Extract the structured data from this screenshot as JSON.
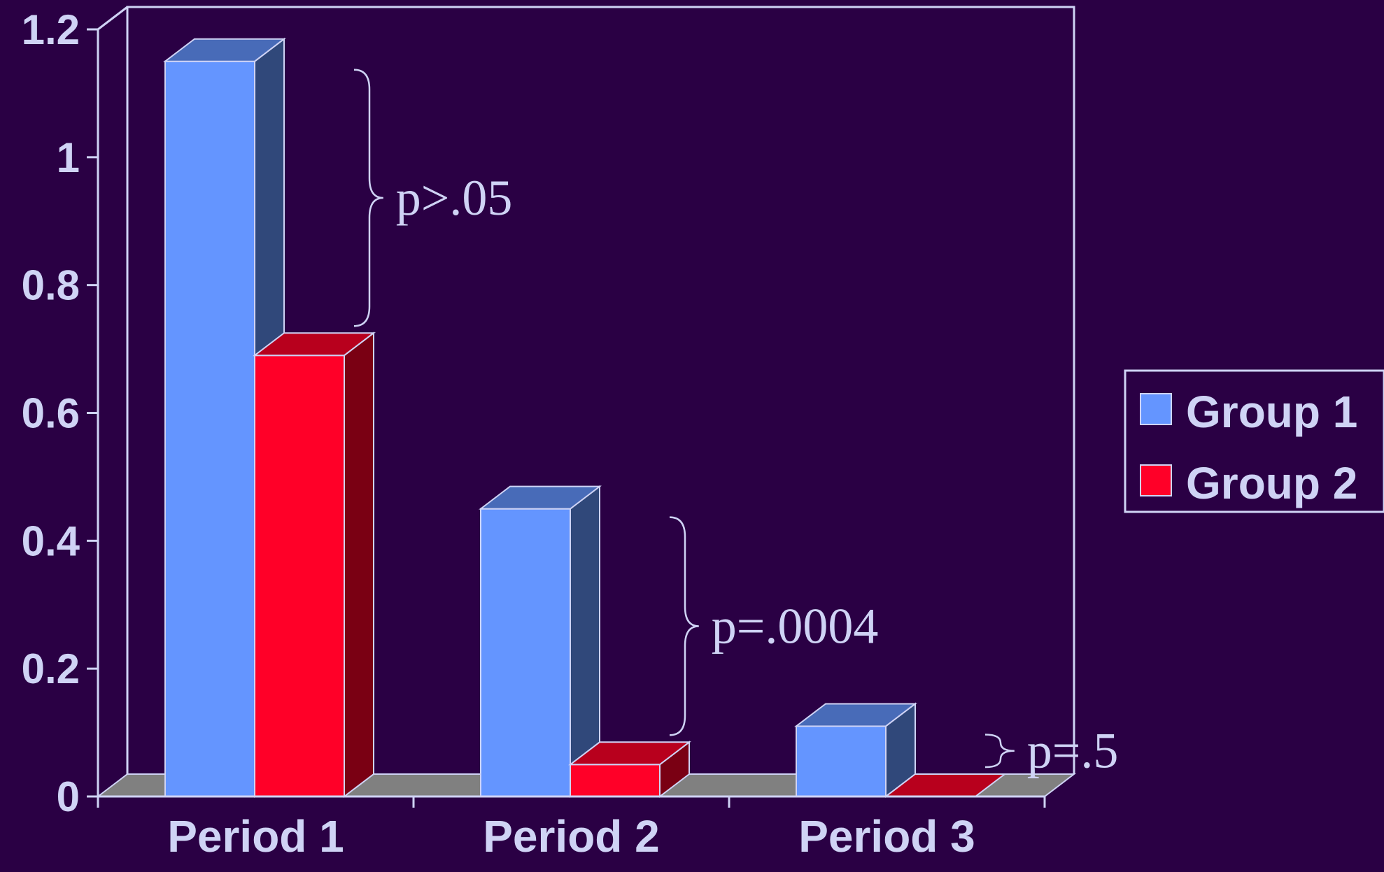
{
  "chart_data": {
    "type": "bar",
    "categories": [
      "Period 1",
      "Period 2",
      "Period 3"
    ],
    "series": [
      {
        "name": "Group 1",
        "values": [
          1.15,
          0.45,
          0.11
        ],
        "color": "#6495ff"
      },
      {
        "name": "Group 2",
        "values": [
          0.69,
          0.05,
          0.0
        ],
        "color": "#ff0028"
      }
    ],
    "ylim": [
      0,
      1.2
    ],
    "yticks": [
      "0",
      "0.2",
      "0.4",
      "0.6",
      "0.8",
      "1",
      "1.2"
    ],
    "annotations": [
      {
        "category": "Period 1",
        "text": "p>.05"
      },
      {
        "category": "Period 2",
        "text": "p=.0004"
      },
      {
        "category": "Period 3",
        "text": "p=.5"
      }
    ],
    "legend": "right",
    "grid": false,
    "style": "3d"
  },
  "colors": {
    "background": "#2a0044",
    "axis": "#cfd3f5",
    "floor": "#808080"
  }
}
